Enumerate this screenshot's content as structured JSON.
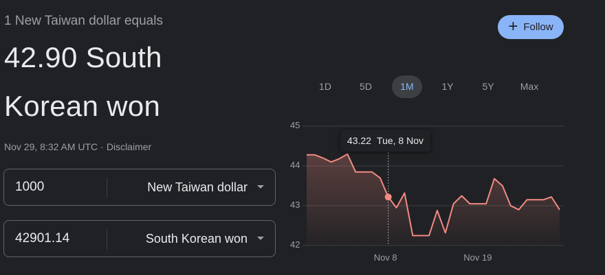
{
  "header": {
    "subtitle": "1 New Taiwan dollar equals",
    "rate_line1": "42.90 South",
    "rate_line2": "Korean won",
    "timestamp": "Nov 29, 8:32 AM UTC",
    "separator": "·",
    "disclaimer": "Disclaimer"
  },
  "converter": {
    "from": {
      "amount": "1000",
      "currency": "New Taiwan dollar"
    },
    "to": {
      "amount": "42901.14",
      "currency": "South Korean won"
    }
  },
  "follow_button": {
    "label": "Follow",
    "icon": "plus-icon"
  },
  "ranges": [
    {
      "label": "1D",
      "active": false
    },
    {
      "label": "5D",
      "active": false
    },
    {
      "label": "1M",
      "active": true
    },
    {
      "label": "1Y",
      "active": false
    },
    {
      "label": "5Y",
      "active": false
    },
    {
      "label": "Max",
      "active": false
    }
  ],
  "tooltip": {
    "value": "43.22",
    "date": "Tue, 8 Nov"
  },
  "colors": {
    "line": "#f28b82",
    "accent": "#8ab4f8",
    "background": "#202124"
  },
  "chart_data": {
    "type": "line",
    "xlabel": "",
    "ylabel": "",
    "ylim": [
      42,
      45
    ],
    "yticks": [
      "45",
      "44",
      "43",
      "42"
    ],
    "xticks": [
      "Nov 8",
      "Nov 19"
    ],
    "grid": true,
    "series": [
      {
        "x": [
          "Oct 29",
          "Oct 30",
          "Oct 31",
          "Nov 1",
          "Nov 2",
          "Nov 3",
          "Nov 4",
          "Nov 5",
          "Nov 6",
          "Nov 7",
          "Nov 8",
          "Nov 9",
          "Nov 10",
          "Nov 11",
          "Nov 12",
          "Nov 13",
          "Nov 14",
          "Nov 15",
          "Nov 16",
          "Nov 17",
          "Nov 18",
          "Nov 19",
          "Nov 20",
          "Nov 21",
          "Nov 22",
          "Nov 23",
          "Nov 24",
          "Nov 25",
          "Nov 26",
          "Nov 27",
          "Nov 28",
          "Nov 29"
        ],
        "values": [
          44.28,
          44.28,
          44.2,
          44.1,
          44.18,
          44.3,
          43.85,
          43.85,
          43.85,
          43.7,
          43.22,
          42.95,
          43.32,
          42.25,
          42.25,
          42.25,
          42.88,
          42.32,
          43.05,
          43.25,
          43.05,
          43.05,
          43.05,
          43.68,
          43.5,
          43.0,
          42.9,
          43.15,
          43.15,
          43.15,
          43.22,
          42.9
        ]
      }
    ],
    "highlight": {
      "x": "Nov 8",
      "value": 43.22
    }
  }
}
